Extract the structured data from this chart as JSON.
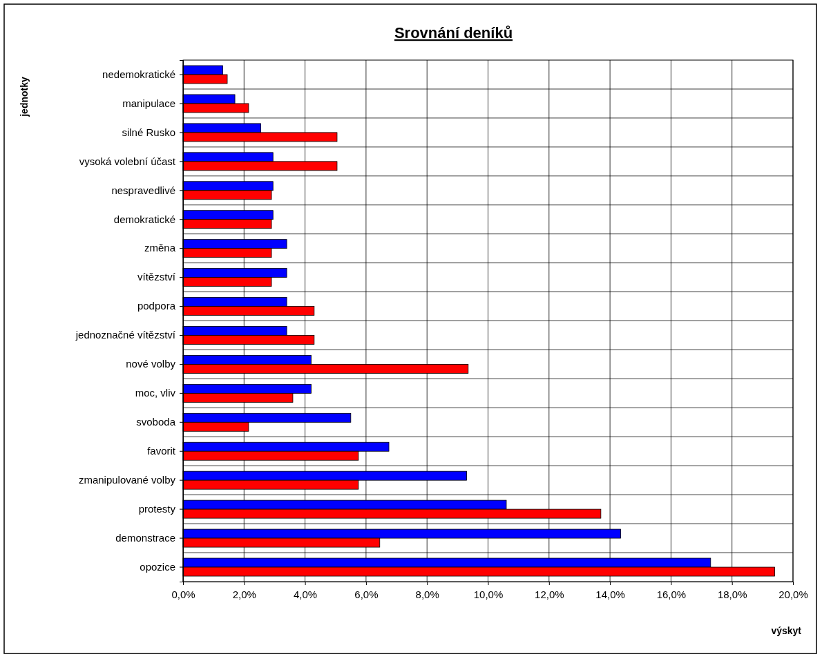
{
  "chart_data": {
    "type": "bar",
    "orientation": "horizontal",
    "title": "Srovnání deníků",
    "xlabel": "výskyt",
    "ylabel": "jednotky",
    "categories": [
      "nedemokratické",
      "manipulace",
      "silné Rusko",
      "vysoká volební účast",
      "nespravedlivé",
      "demokratické",
      "změna",
      "vítězství",
      "podpora",
      "jednoznačné vítězství",
      "nové volby",
      "moc, vliv",
      "svoboda",
      "favorit",
      "zmanipulované volby",
      "protesty",
      "demonstrace",
      "opozice"
    ],
    "series": [
      {
        "color": "#0000ff",
        "values": [
          1.3,
          1.7,
          2.55,
          2.95,
          2.95,
          2.95,
          3.4,
          3.4,
          3.4,
          3.4,
          4.2,
          4.2,
          5.5,
          6.75,
          9.3,
          10.6,
          14.35,
          17.3
        ]
      },
      {
        "color": "#ff0000",
        "values": [
          1.45,
          2.15,
          5.05,
          5.05,
          2.9,
          2.9,
          2.9,
          2.9,
          4.3,
          4.3,
          9.35,
          3.6,
          2.15,
          5.75,
          5.75,
          13.7,
          6.45,
          19.4
        ]
      }
    ],
    "xlim": [
      0,
      20
    ],
    "xticks": [
      {
        "value": 0,
        "label": "0,0%"
      },
      {
        "value": 2,
        "label": "2,0%"
      },
      {
        "value": 4,
        "label": "4,0%"
      },
      {
        "value": 6,
        "label": "6,0%"
      },
      {
        "value": 8,
        "label": "8,0%"
      },
      {
        "value": 10,
        "label": "10,0%"
      },
      {
        "value": 12,
        "label": "12,0%"
      },
      {
        "value": 14,
        "label": "14,0%"
      },
      {
        "value": 16,
        "label": "16,0%"
      },
      {
        "value": 18,
        "label": "18,0%"
      },
      {
        "value": 20,
        "label": "20,0%"
      }
    ],
    "grid": true
  }
}
